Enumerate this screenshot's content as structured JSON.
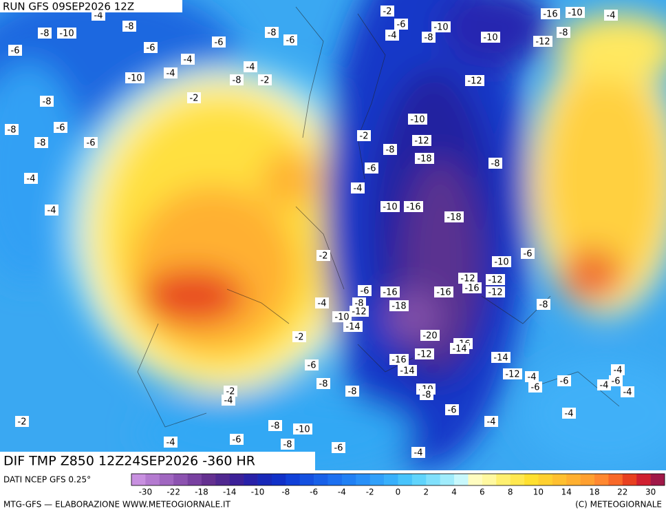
{
  "header": {
    "run": "RUN GFS 09SEP2026 12Z"
  },
  "map": {
    "title": "DIF TMP Z850 12Z24SEP2026 -360 HR",
    "contour_labels": [
      -4,
      -2,
      -16,
      -10,
      -4,
      -8,
      -10,
      -8,
      -8,
      -6,
      -4,
      -10,
      -8,
      -10,
      -8,
      -12,
      -6,
      -6,
      -6,
      -6,
      -4,
      -4,
      -4,
      -10,
      -8,
      -2,
      -12,
      -2,
      -8,
      -8,
      -6,
      -10,
      -8,
      -6,
      -2,
      -12,
      -8,
      -18,
      -8,
      -4,
      -6,
      -4,
      -10,
      -16,
      -4,
      -18,
      -2,
      -6,
      -10,
      -12,
      -12,
      -6,
      -16,
      -16,
      -16,
      -12,
      -4,
      -8,
      -18,
      -8,
      -12,
      -10,
      -14,
      -20,
      -2,
      -16,
      -14,
      -12,
      -16,
      -14,
      -6,
      -14,
      -12,
      -4,
      -8,
      -10,
      -8,
      -6,
      -6,
      -8,
      -4,
      -4,
      -6,
      -4,
      -2,
      -4,
      -6,
      -4,
      -4,
      -2,
      -8,
      -10,
      -6,
      -8,
      -4,
      -6,
      -4
    ]
  },
  "footer": {
    "source": "DATI NCEP GFS 0.25°",
    "credit_left": "MTG-GFS — ELABORAZIONE WWW.METEOGIORNALE.IT",
    "credit_right": "(C) METEOGIORNALE"
  },
  "colorbar": {
    "colors": [
      "#c890e0",
      "#b47ad0",
      "#a066c0",
      "#8c52b0",
      "#7840a0",
      "#643090",
      "#502890",
      "#3c2098",
      "#2820a8",
      "#1828b8",
      "#1030c8",
      "#1040d8",
      "#1450e0",
      "#1860e8",
      "#1c70f0",
      "#2080f4",
      "#2890f8",
      "#30a0fa",
      "#38b0fc",
      "#48c4fc",
      "#60d4fc",
      "#80e0fc",
      "#a0ecfc",
      "#c8f8fc",
      "#fffcc0",
      "#fff8a0",
      "#fff070",
      "#ffe850",
      "#ffe030",
      "#ffd030",
      "#ffc030",
      "#ffb030",
      "#ffa030",
      "#ff8830",
      "#f86828",
      "#e84020",
      "#d02030",
      "#a01848"
    ],
    "ticks": [
      -30,
      -22,
      -18,
      -14,
      -10,
      -8,
      -6,
      -4,
      -2,
      0,
      2,
      4,
      6,
      8,
      10,
      14,
      18,
      22,
      30
    ]
  }
}
